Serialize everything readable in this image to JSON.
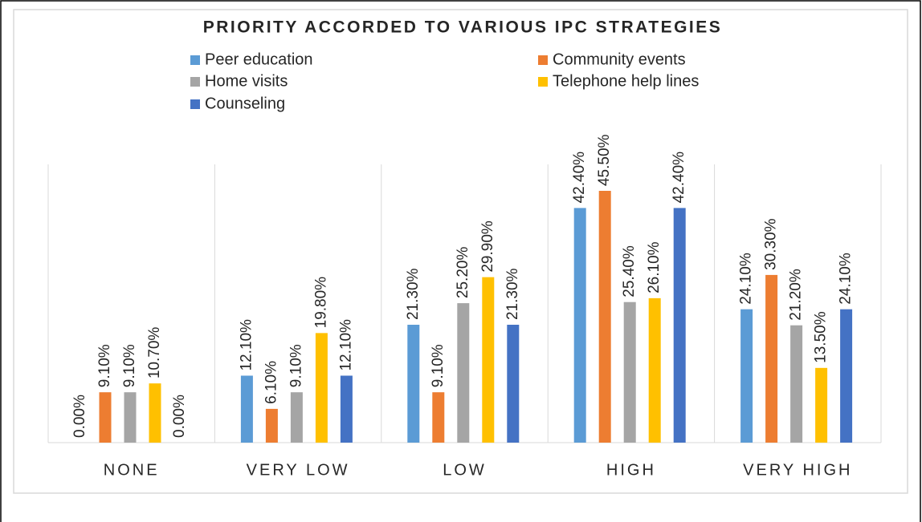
{
  "chart_data": {
    "type": "bar",
    "title": "PRIORITY ACCORDED TO VARIOUS IPC STRATEGIES",
    "categories": [
      "NONE",
      "VERY LOW",
      "LOW",
      "HIGH",
      "VERY HIGH"
    ],
    "series": [
      {
        "name": "Peer education",
        "color": "#5b9bd5",
        "values": [
          0,
          12.1,
          21.3,
          42.4,
          24.1
        ],
        "value_labels": [
          "0.00%",
          "12.10%",
          "21.30%",
          "42.40%",
          "24.10%"
        ]
      },
      {
        "name": "Community events",
        "color": "#ed7d31",
        "values": [
          9.1,
          6.1,
          9.1,
          45.5,
          30.3
        ],
        "value_labels": [
          "9.10%",
          "6.10%",
          "9.10%",
          "45.50%",
          "30.30%"
        ]
      },
      {
        "name": "Home visits",
        "color": "#a5a5a5",
        "values": [
          9.1,
          9.1,
          25.2,
          25.4,
          21.2
        ],
        "value_labels": [
          "9.10%",
          "9.10%",
          "25.20%",
          "25.40%",
          "21.20%"
        ]
      },
      {
        "name": "Telephone help lines",
        "color": "#ffc000",
        "values": [
          10.7,
          19.8,
          29.9,
          26.1,
          13.5
        ],
        "value_labels": [
          "10.70%",
          "19.80%",
          "29.90%",
          "26.10%",
          "13.50%"
        ]
      },
      {
        "name": "Counseling",
        "color": "#4472c4",
        "values": [
          0,
          12.1,
          21.3,
          42.4,
          24.1
        ],
        "value_labels": [
          "0.00%",
          "12.10%",
          "21.30%",
          "42.40%",
          "24.10%"
        ]
      }
    ]
  }
}
